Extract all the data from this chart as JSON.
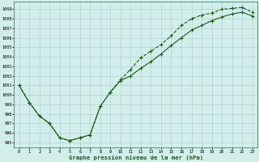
{
  "title": "Graphe pression niveau de la mer (hPa)",
  "bg_color": "#d2eeea",
  "grid_color": "#aacccc",
  "line_color": "#1a5c1a",
  "ylim": [
    994.5,
    1009.8
  ],
  "ytick_vals": [
    995,
    996,
    997,
    998,
    999,
    1000,
    1001,
    1002,
    1003,
    1004,
    1005,
    1006,
    1007,
    1008,
    1009
  ],
  "series1_y": [
    1001.0,
    999.2,
    997.8,
    997.0,
    995.5,
    995.2,
    995.5,
    995.8,
    998.8,
    1000.3,
    1001.5,
    1002.0,
    1002.8,
    1003.5,
    1004.3,
    1005.2,
    1006.0,
    1006.8,
    1007.3,
    1007.8,
    1008.2,
    1008.5,
    1008.7,
    1008.3
  ],
  "series2_y": [
    1001.0,
    999.2,
    997.8,
    997.0,
    995.5,
    995.2,
    995.5,
    995.8,
    998.8,
    1000.3,
    1001.6,
    1002.7,
    1003.9,
    1004.6,
    1005.3,
    1006.2,
    1007.3,
    1008.0,
    1008.4,
    1008.6,
    1009.0,
    1009.1,
    1009.2,
    1008.7
  ]
}
